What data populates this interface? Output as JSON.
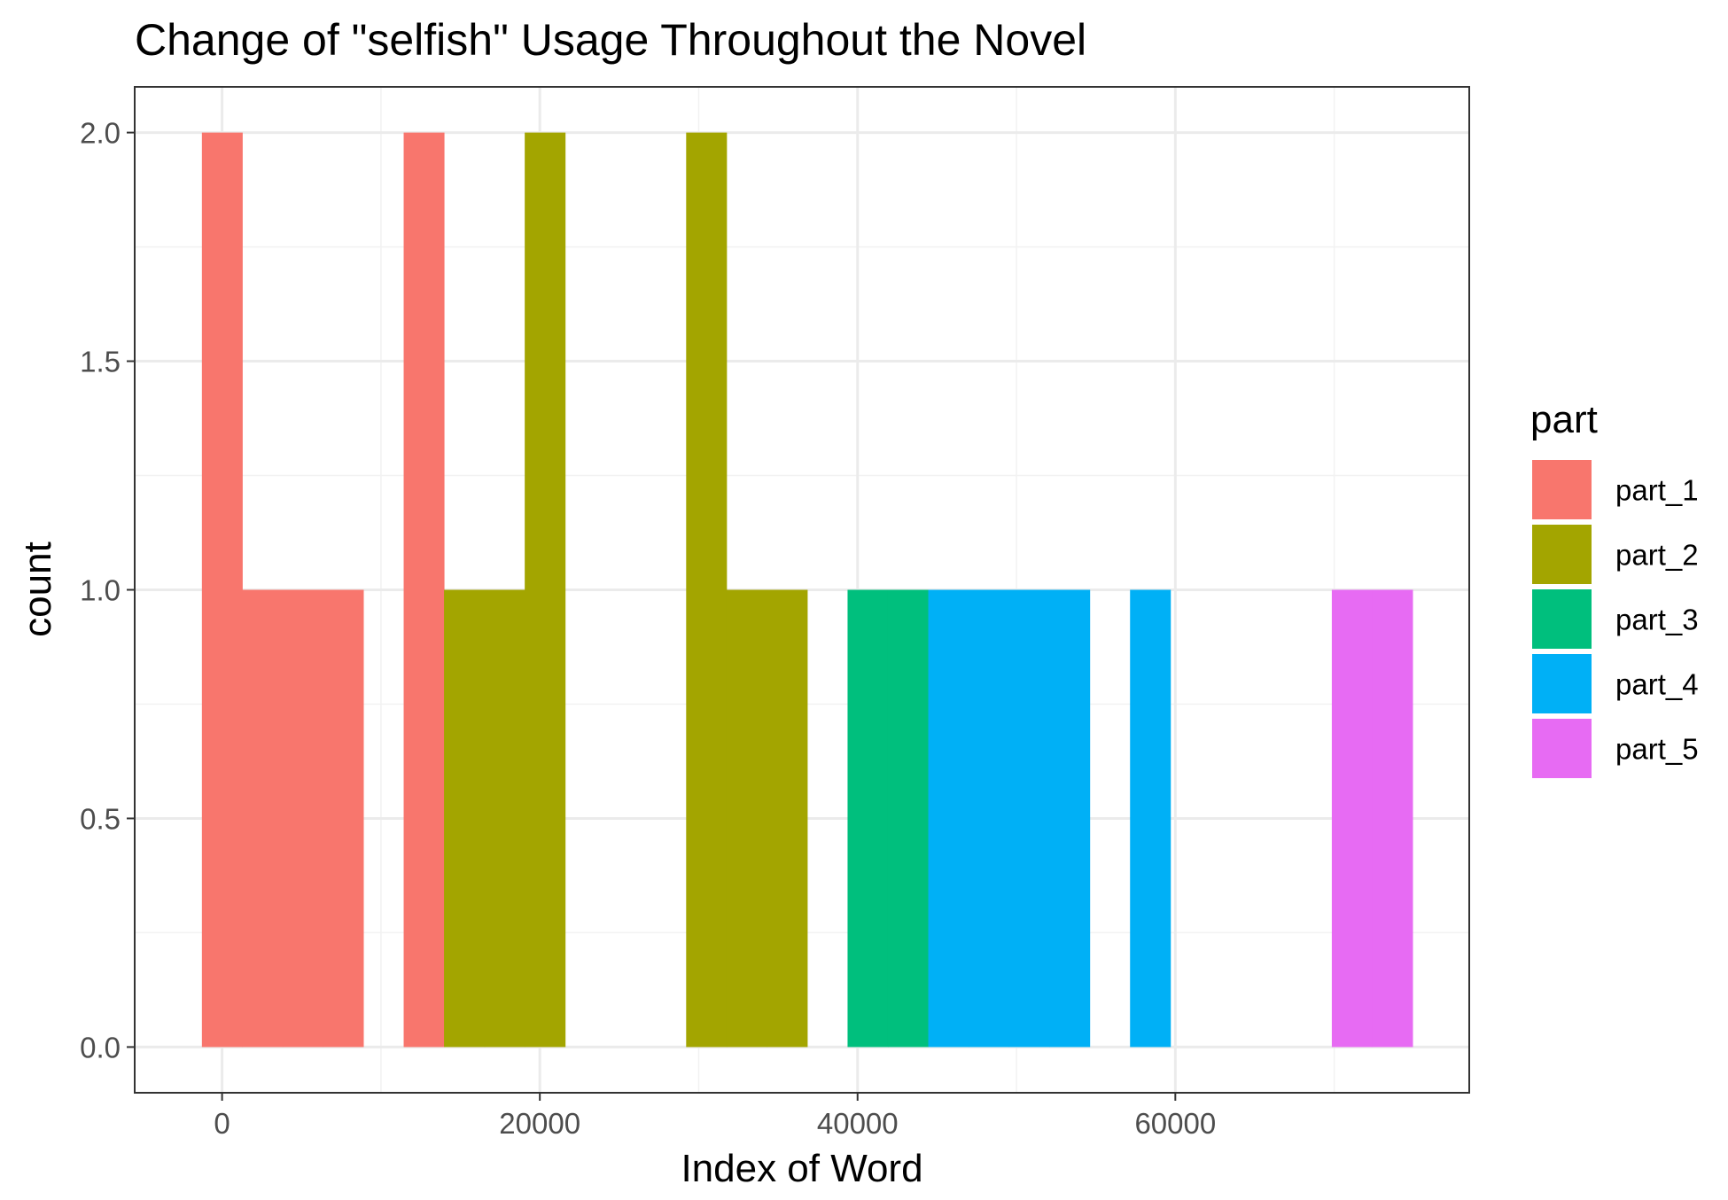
{
  "chart_data": {
    "type": "bar",
    "title": "Change of \"selfish\" Usage Throughout the Novel",
    "xlabel": "Index of Word",
    "ylabel": "count",
    "xlim": [
      -5500,
      78500
    ],
    "ylim": [
      -0.1,
      2.1
    ],
    "x_ticks": [
      0,
      20000,
      40000,
      60000
    ],
    "x_tick_labels": [
      "0",
      "20000",
      "40000",
      "60000"
    ],
    "y_ticks": [
      0.0,
      0.5,
      1.0,
      1.5,
      2.0
    ],
    "y_tick_labels": [
      "0.0",
      "0.5",
      "1.0",
      "1.5",
      "2.0"
    ],
    "grid": true,
    "legend": {
      "title": "part",
      "placement": "right",
      "entries": [
        "part_1",
        "part_2",
        "part_3",
        "part_4",
        "part_5"
      ]
    },
    "colors": {
      "part_1": "#F8766D",
      "part_2": "#A3A500",
      "part_3": "#00BF7D",
      "part_4": "#00B0F6",
      "part_5": "#E76BF3"
    },
    "bin_width": 2540,
    "series": [
      {
        "name": "part_1",
        "bins": [
          {
            "x0": -1270,
            "x1": 1270,
            "count": 2
          },
          {
            "x0": 1270,
            "x1": 3810,
            "count": 1
          },
          {
            "x0": 3810,
            "x1": 6350,
            "count": 1
          },
          {
            "x0": 6350,
            "x1": 8890,
            "count": 1
          },
          {
            "x0": 11430,
            "x1": 13970,
            "count": 2
          }
        ]
      },
      {
        "name": "part_2",
        "bins": [
          {
            "x0": 13970,
            "x1": 16510,
            "count": 1
          },
          {
            "x0": 16510,
            "x1": 19050,
            "count": 1
          },
          {
            "x0": 19050,
            "x1": 21590,
            "count": 2
          },
          {
            "x0": 29210,
            "x1": 31750,
            "count": 2
          },
          {
            "x0": 31750,
            "x1": 34290,
            "count": 1
          },
          {
            "x0": 34290,
            "x1": 36830,
            "count": 1
          }
        ]
      },
      {
        "name": "part_3",
        "bins": [
          {
            "x0": 39370,
            "x1": 41910,
            "count": 1
          },
          {
            "x0": 41910,
            "x1": 44450,
            "count": 1
          }
        ]
      },
      {
        "name": "part_4",
        "bins": [
          {
            "x0": 44450,
            "x1": 46990,
            "count": 1
          },
          {
            "x0": 46990,
            "x1": 49530,
            "count": 1
          },
          {
            "x0": 49530,
            "x1": 52070,
            "count": 1
          },
          {
            "x0": 52070,
            "x1": 54610,
            "count": 1
          },
          {
            "x0": 57150,
            "x1": 59690,
            "count": 1
          }
        ]
      },
      {
        "name": "part_5",
        "bins": [
          {
            "x0": 69850,
            "x1": 72390,
            "count": 1
          },
          {
            "x0": 72390,
            "x1": 74930,
            "count": 1
          }
        ]
      }
    ]
  }
}
